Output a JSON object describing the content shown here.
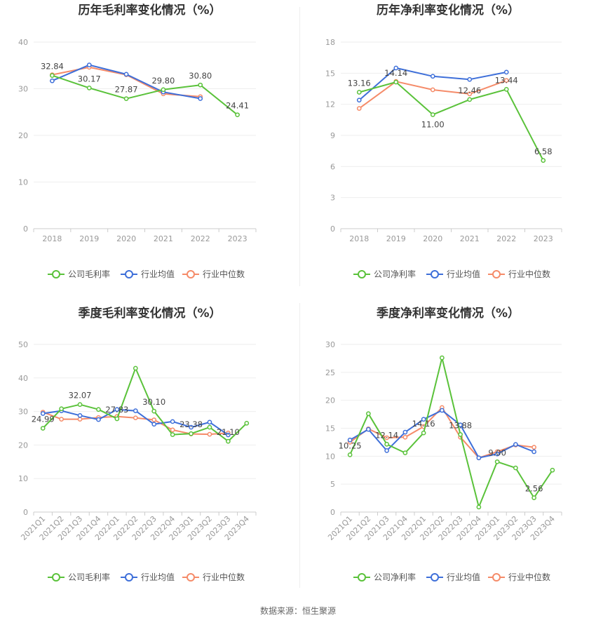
{
  "colors": {
    "company": "#5ac23a",
    "industry_avg": "#3e6fd9",
    "industry_median": "#f58b69"
  },
  "legend_labels_margin": [
    "公司毛利率",
    "行业均值",
    "行业中位数"
  ],
  "legend_labels_net": [
    "公司净利率",
    "行业均值",
    "行业中位数"
  ],
  "source_text": "数据来源：恒生聚源",
  "chart_data": [
    {
      "id": "annual-gross",
      "type": "line",
      "title": "历年毛利率变化情况（%）",
      "categories": [
        "2018",
        "2019",
        "2020",
        "2021",
        "2022",
        "2023"
      ],
      "ylim": [
        0,
        40
      ],
      "yticks": [
        0,
        10,
        20,
        30,
        40
      ],
      "xlabel_rotate": false,
      "series": [
        {
          "name": "公司毛利率",
          "role": "company",
          "values": [
            32.84,
            30.17,
            27.87,
            29.8,
            30.8,
            24.41
          ]
        },
        {
          "name": "行业均值",
          "role": "industry_avg",
          "values": [
            31.7,
            35.1,
            33.1,
            29.3,
            27.9,
            null
          ]
        },
        {
          "name": "行业中位数",
          "role": "industry_median",
          "values": [
            33.0,
            34.6,
            33.0,
            28.9,
            28.3,
            null
          ]
        }
      ],
      "labels": [
        {
          "series": 0,
          "index": 0,
          "text": "32.84"
        },
        {
          "series": 0,
          "index": 1,
          "text": "30.17"
        },
        {
          "series": 0,
          "index": 2,
          "text": "27.87"
        },
        {
          "series": 0,
          "index": 3,
          "text": "29.80"
        },
        {
          "series": 0,
          "index": 4,
          "text": "30.80"
        },
        {
          "series": 0,
          "index": 5,
          "text": "24.41"
        }
      ]
    },
    {
      "id": "annual-net",
      "type": "line",
      "title": "历年净利率变化情况（%）",
      "categories": [
        "2018",
        "2019",
        "2020",
        "2021",
        "2022",
        "2023"
      ],
      "ylim": [
        0,
        18
      ],
      "yticks": [
        0,
        3,
        6,
        9,
        12,
        15,
        18
      ],
      "xlabel_rotate": false,
      "series": [
        {
          "name": "公司净利率",
          "role": "company",
          "values": [
            13.16,
            14.14,
            11.0,
            12.46,
            13.44,
            6.58
          ]
        },
        {
          "name": "行业均值",
          "role": "industry_avg",
          "values": [
            12.4,
            15.5,
            14.7,
            14.4,
            15.1,
            null
          ]
        },
        {
          "name": "行业中位数",
          "role": "industry_median",
          "values": [
            11.6,
            14.2,
            13.4,
            13.0,
            14.3,
            null
          ]
        }
      ],
      "labels": [
        {
          "series": 0,
          "index": 0,
          "text": "13.16"
        },
        {
          "series": 0,
          "index": 1,
          "text": "14.14"
        },
        {
          "series": 0,
          "index": 2,
          "text": "11.00"
        },
        {
          "series": 0,
          "index": 3,
          "text": "12.46"
        },
        {
          "series": 0,
          "index": 4,
          "text": "13.44"
        },
        {
          "series": 0,
          "index": 5,
          "text": "6.58"
        }
      ]
    },
    {
      "id": "quarterly-gross",
      "type": "line",
      "title": "季度毛利率变化情况（%）",
      "categories": [
        "2021Q1",
        "2021Q2",
        "2021Q3",
        "2021Q4",
        "2022Q1",
        "2022Q2",
        "2022Q3",
        "2022Q4",
        "2023Q1",
        "2023Q2",
        "2023Q3",
        "2023Q4"
      ],
      "ylim": [
        0,
        50
      ],
      "yticks": [
        0,
        10,
        20,
        30,
        40,
        50
      ],
      "xlabel_rotate": true,
      "series": [
        {
          "name": "公司毛利率",
          "role": "company",
          "values": [
            24.99,
            30.8,
            32.07,
            30.6,
            27.83,
            42.9,
            30.1,
            23.1,
            23.38,
            25.3,
            21.1,
            26.5
          ]
        },
        {
          "name": "行业均值",
          "role": "industry_avg",
          "values": [
            29.4,
            30.2,
            28.8,
            27.6,
            30.6,
            30.2,
            26.2,
            27.0,
            25.3,
            26.8,
            23.0,
            null
          ]
        },
        {
          "name": "行业中位数",
          "role": "industry_median",
          "values": [
            29.8,
            27.7,
            27.7,
            28.2,
            28.5,
            28.1,
            27.5,
            24.5,
            23.3,
            23.2,
            23.6,
            null
          ]
        }
      ],
      "labels": [
        {
          "series": 0,
          "index": 0,
          "text": "24.99"
        },
        {
          "series": 0,
          "index": 2,
          "text": "32.07"
        },
        {
          "series": 0,
          "index": 4,
          "text": "27.83"
        },
        {
          "series": 0,
          "index": 6,
          "text": "30.10"
        },
        {
          "series": 0,
          "index": 8,
          "text": "23.38"
        },
        {
          "series": 0,
          "index": 10,
          "text": "21.10"
        }
      ]
    },
    {
      "id": "quarterly-net",
      "type": "line",
      "title": "季度净利率变化情况（%）",
      "categories": [
        "2021Q1",
        "2021Q2",
        "2021Q3",
        "2021Q4",
        "2022Q1",
        "2022Q2",
        "2022Q3",
        "2022Q4",
        "2023Q1",
        "2023Q2",
        "2023Q3",
        "2023Q4"
      ],
      "ylim": [
        0,
        30
      ],
      "yticks": [
        0,
        5,
        10,
        15,
        20,
        25,
        30
      ],
      "xlabel_rotate": true,
      "series": [
        {
          "name": "公司净利率",
          "role": "company",
          "values": [
            10.25,
            17.6,
            12.14,
            10.6,
            14.16,
            27.6,
            13.88,
            0.9,
            9.0,
            7.9,
            2.56,
            7.5
          ]
        },
        {
          "name": "行业均值",
          "role": "industry_avg",
          "values": [
            12.9,
            14.8,
            11.0,
            14.3,
            16.6,
            18.2,
            15.6,
            9.7,
            10.4,
            12.1,
            10.8,
            null
          ]
        },
        {
          "name": "行业中位数",
          "role": "industry_median",
          "values": [
            12.5,
            14.9,
            13.3,
            13.4,
            15.3,
            18.7,
            13.4,
            9.7,
            10.8,
            12.0,
            11.6,
            null
          ]
        }
      ],
      "labels": [
        {
          "series": 0,
          "index": 0,
          "text": "10.25"
        },
        {
          "series": 0,
          "index": 2,
          "text": "12.14"
        },
        {
          "series": 0,
          "index": 4,
          "text": "14.16"
        },
        {
          "series": 0,
          "index": 6,
          "text": "13.88"
        },
        {
          "series": 0,
          "index": 8,
          "text": "9.00"
        },
        {
          "series": 0,
          "index": 10,
          "text": "2.56"
        }
      ]
    }
  ]
}
